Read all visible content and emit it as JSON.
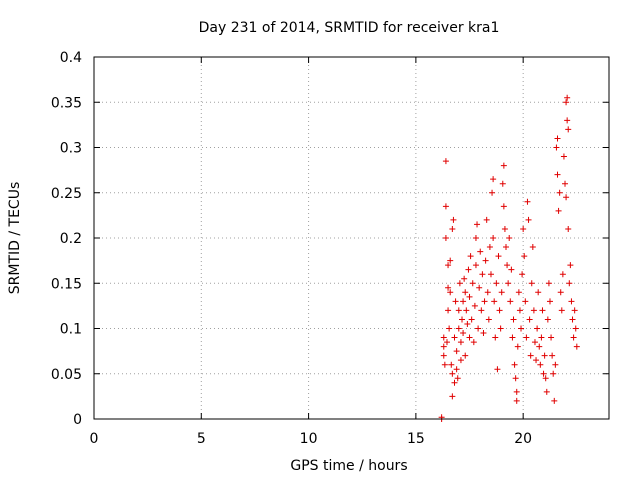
{
  "chart_data": {
    "type": "scatter",
    "title": "Day 231 of 2014, SRMTID for receiver kra1",
    "xlabel": "GPS time / hours",
    "ylabel": "SRMTID / TECUs",
    "xlim": [
      0,
      24
    ],
    "ylim": [
      0,
      0.4
    ],
    "xticks": [
      0,
      5,
      10,
      15,
      20
    ],
    "xtick_labels": [
      "0",
      "5",
      "10",
      "15",
      "20"
    ],
    "yticks": [
      0,
      0.05,
      0.1,
      0.15,
      0.2,
      0.25,
      0.3,
      0.35,
      0.4
    ],
    "ytick_labels": [
      "0",
      "0.05",
      "0.1",
      "0.15",
      "0.2",
      "0.25",
      "0.3",
      "0.35",
      "0.4"
    ],
    "grid": true,
    "marker": "+",
    "color": "#e00000",
    "series": [
      {
        "name": "SRMTID",
        "points": [
          [
            16.2,
            0.0
          ],
          [
            16.2,
            0.002
          ],
          [
            16.3,
            0.07
          ],
          [
            16.3,
            0.08
          ],
          [
            16.3,
            0.09
          ],
          [
            16.35,
            0.06
          ],
          [
            16.4,
            0.285
          ],
          [
            16.4,
            0.235
          ],
          [
            16.4,
            0.2
          ],
          [
            16.45,
            0.085
          ],
          [
            16.5,
            0.17
          ],
          [
            16.5,
            0.145
          ],
          [
            16.5,
            0.12
          ],
          [
            16.55,
            0.1
          ],
          [
            16.6,
            0.175
          ],
          [
            16.6,
            0.14
          ],
          [
            16.65,
            0.06
          ],
          [
            16.7,
            0.05
          ],
          [
            16.7,
            0.025
          ],
          [
            16.7,
            0.21
          ],
          [
            16.75,
            0.22
          ],
          [
            16.8,
            0.09
          ],
          [
            16.8,
            0.04
          ],
          [
            16.85,
            0.13
          ],
          [
            16.9,
            0.075
          ],
          [
            16.9,
            0.055
          ],
          [
            16.95,
            0.045
          ],
          [
            17.0,
            0.1
          ],
          [
            17.0,
            0.12
          ],
          [
            17.05,
            0.15
          ],
          [
            17.1,
            0.085
          ],
          [
            17.1,
            0.065
          ],
          [
            17.15,
            0.11
          ],
          [
            17.2,
            0.13
          ],
          [
            17.2,
            0.095
          ],
          [
            17.25,
            0.155
          ],
          [
            17.3,
            0.14
          ],
          [
            17.3,
            0.07
          ],
          [
            17.35,
            0.12
          ],
          [
            17.4,
            0.105
          ],
          [
            17.45,
            0.165
          ],
          [
            17.5,
            0.09
          ],
          [
            17.5,
            0.135
          ],
          [
            17.55,
            0.18
          ],
          [
            17.6,
            0.11
          ],
          [
            17.65,
            0.15
          ],
          [
            17.7,
            0.085
          ],
          [
            17.75,
            0.125
          ],
          [
            17.8,
            0.2
          ],
          [
            17.8,
            0.17
          ],
          [
            17.85,
            0.215
          ],
          [
            17.9,
            0.1
          ],
          [
            17.95,
            0.145
          ],
          [
            18.0,
            0.185
          ],
          [
            18.05,
            0.12
          ],
          [
            18.1,
            0.16
          ],
          [
            18.15,
            0.095
          ],
          [
            18.2,
            0.13
          ],
          [
            18.25,
            0.175
          ],
          [
            18.3,
            0.22
          ],
          [
            18.35,
            0.14
          ],
          [
            18.4,
            0.11
          ],
          [
            18.45,
            0.19
          ],
          [
            18.5,
            0.16
          ],
          [
            18.55,
            0.25
          ],
          [
            18.6,
            0.265
          ],
          [
            18.6,
            0.2
          ],
          [
            18.65,
            0.13
          ],
          [
            18.7,
            0.09
          ],
          [
            18.75,
            0.15
          ],
          [
            18.8,
            0.055
          ],
          [
            18.85,
            0.18
          ],
          [
            18.9,
            0.12
          ],
          [
            18.95,
            0.1
          ],
          [
            19.0,
            0.14
          ],
          [
            19.05,
            0.26
          ],
          [
            19.1,
            0.28
          ],
          [
            19.1,
            0.235
          ],
          [
            19.15,
            0.21
          ],
          [
            19.2,
            0.19
          ],
          [
            19.25,
            0.17
          ],
          [
            19.3,
            0.15
          ],
          [
            19.35,
            0.2
          ],
          [
            19.4,
            0.13
          ],
          [
            19.45,
            0.165
          ],
          [
            19.5,
            0.09
          ],
          [
            19.55,
            0.11
          ],
          [
            19.6,
            0.06
          ],
          [
            19.65,
            0.045
          ],
          [
            19.7,
            0.03
          ],
          [
            19.7,
            0.02
          ],
          [
            19.75,
            0.08
          ],
          [
            19.8,
            0.14
          ],
          [
            19.85,
            0.12
          ],
          [
            19.9,
            0.1
          ],
          [
            19.95,
            0.16
          ],
          [
            20.0,
            0.21
          ],
          [
            20.05,
            0.18
          ],
          [
            20.1,
            0.13
          ],
          [
            20.15,
            0.09
          ],
          [
            20.2,
            0.24
          ],
          [
            20.25,
            0.22
          ],
          [
            20.3,
            0.11
          ],
          [
            20.35,
            0.07
          ],
          [
            20.4,
            0.15
          ],
          [
            20.45,
            0.19
          ],
          [
            20.5,
            0.12
          ],
          [
            20.55,
            0.085
          ],
          [
            20.6,
            0.065
          ],
          [
            20.65,
            0.1
          ],
          [
            20.7,
            0.14
          ],
          [
            20.75,
            0.08
          ],
          [
            20.8,
            0.06
          ],
          [
            20.85,
            0.09
          ],
          [
            20.9,
            0.12
          ],
          [
            20.95,
            0.05
          ],
          [
            21.0,
            0.07
          ],
          [
            21.05,
            0.045
          ],
          [
            21.1,
            0.03
          ],
          [
            21.15,
            0.11
          ],
          [
            21.2,
            0.15
          ],
          [
            21.25,
            0.13
          ],
          [
            21.3,
            0.09
          ],
          [
            21.35,
            0.07
          ],
          [
            21.4,
            0.05
          ],
          [
            21.45,
            0.02
          ],
          [
            21.5,
            0.06
          ],
          [
            21.55,
            0.3
          ],
          [
            21.6,
            0.31
          ],
          [
            21.6,
            0.27
          ],
          [
            21.65,
            0.23
          ],
          [
            21.7,
            0.25
          ],
          [
            21.75,
            0.14
          ],
          [
            21.8,
            0.12
          ],
          [
            21.85,
            0.16
          ],
          [
            21.9,
            0.29
          ],
          [
            21.95,
            0.26
          ],
          [
            22.0,
            0.245
          ],
          [
            22.0,
            0.35
          ],
          [
            22.05,
            0.355
          ],
          [
            22.05,
            0.33
          ],
          [
            22.1,
            0.32
          ],
          [
            22.1,
            0.21
          ],
          [
            22.15,
            0.15
          ],
          [
            22.2,
            0.17
          ],
          [
            22.25,
            0.13
          ],
          [
            22.3,
            0.11
          ],
          [
            22.35,
            0.09
          ],
          [
            22.4,
            0.12
          ],
          [
            22.45,
            0.1
          ],
          [
            22.5,
            0.08
          ]
        ]
      }
    ]
  }
}
